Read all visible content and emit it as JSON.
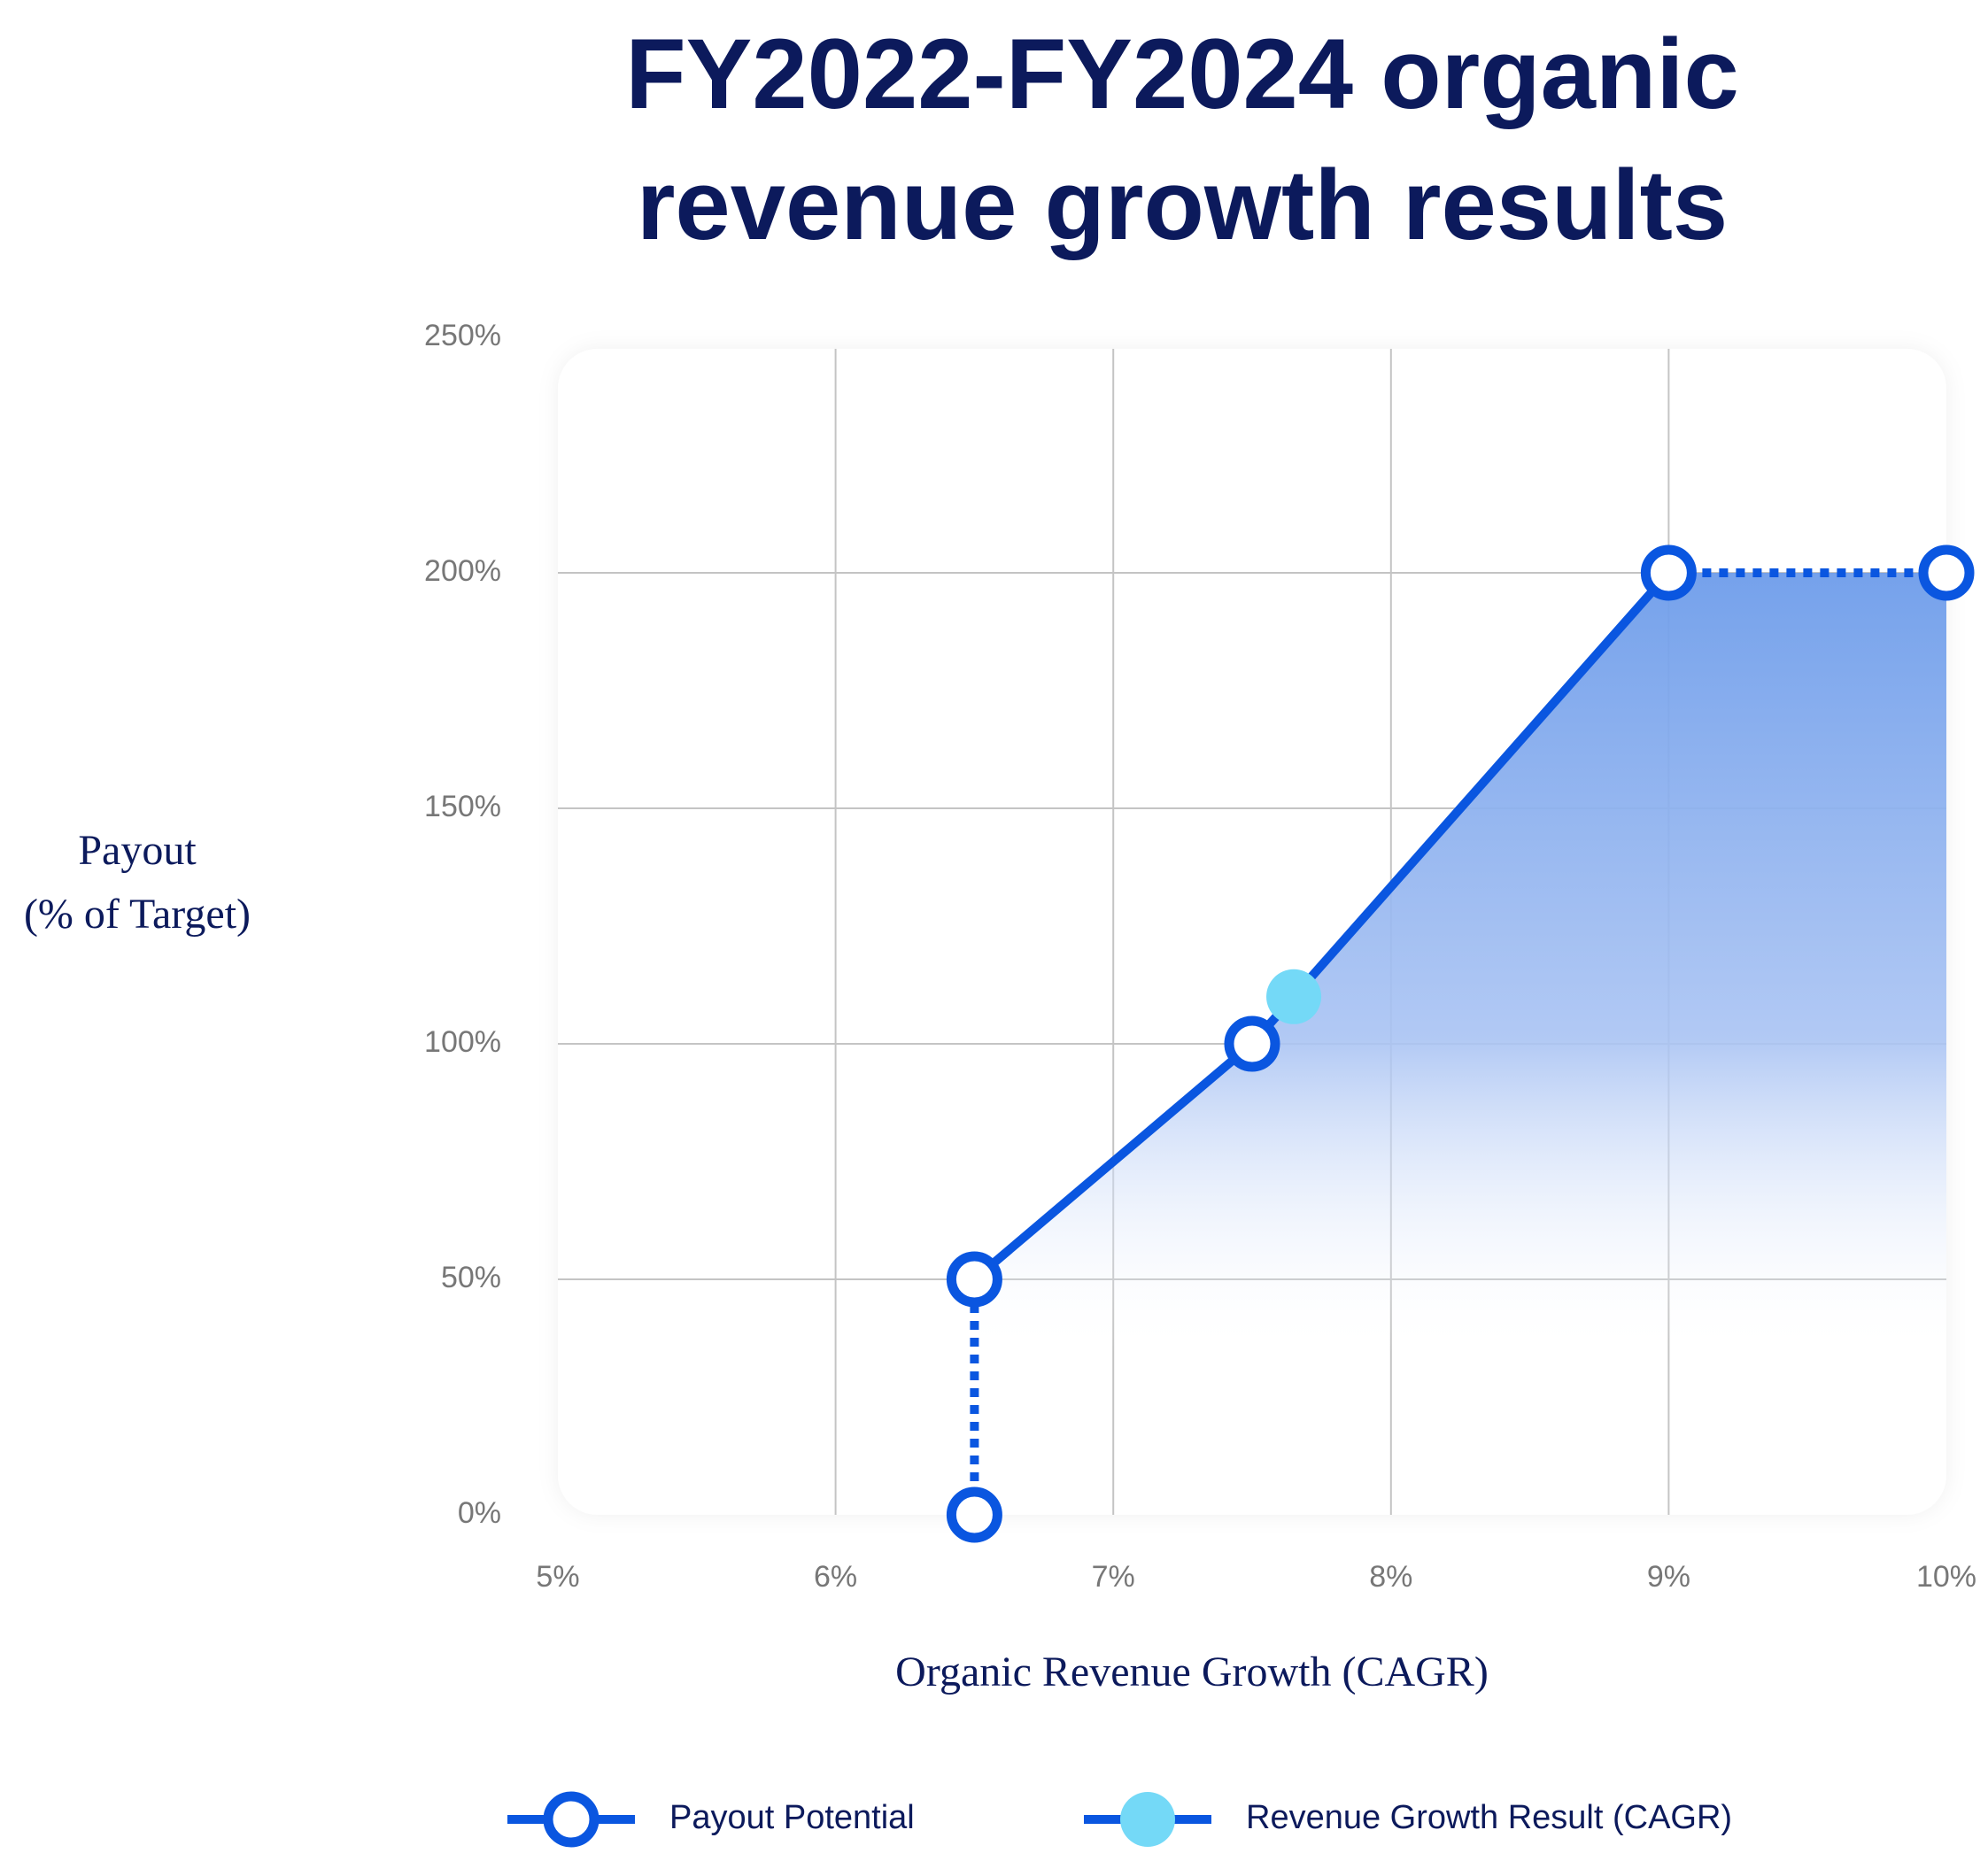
{
  "chart_data": {
    "type": "line",
    "title": "FY2022-FY2024 organic revenue growth results",
    "x_label": "Organic Revenue Growth (CAGR)",
    "y_label": "Payout\n(% of Target)",
    "xlim": [
      5,
      10
    ],
    "xticks": [
      {
        "value": 5,
        "label": "5%"
      },
      {
        "value": 6,
        "label": "6%"
      },
      {
        "value": 7,
        "label": "7%"
      },
      {
        "value": 8,
        "label": "8%"
      },
      {
        "value": 9,
        "label": "9%"
      },
      {
        "value": 10,
        "label": "10%"
      }
    ],
    "ylim": [
      0,
      250
    ],
    "yticks": [
      {
        "value": 0,
        "label": "0%"
      },
      {
        "value": 50,
        "label": "50%"
      },
      {
        "value": 100,
        "label": "100%"
      },
      {
        "value": 150,
        "label": "150%"
      },
      {
        "value": 200,
        "label": "200%"
      },
      {
        "value": 250,
        "label": "250%"
      }
    ],
    "grid": true,
    "series": [
      {
        "name": "Payout Potential",
        "color": "#0a56e0",
        "x": [
          6.5,
          6.5,
          7.5,
          9,
          10
        ],
        "values": [
          0,
          50,
          100,
          200,
          200
        ],
        "segment_styles": [
          "dotted",
          "solid",
          "solid",
          "dotted"
        ],
        "marker": "hollow",
        "area": true
      },
      {
        "name": "Revenue Growth Result (CAGR)",
        "color": "#74d9f7",
        "x": [
          7.65
        ],
        "values": [
          110
        ],
        "marker": "filled"
      }
    ]
  }
}
